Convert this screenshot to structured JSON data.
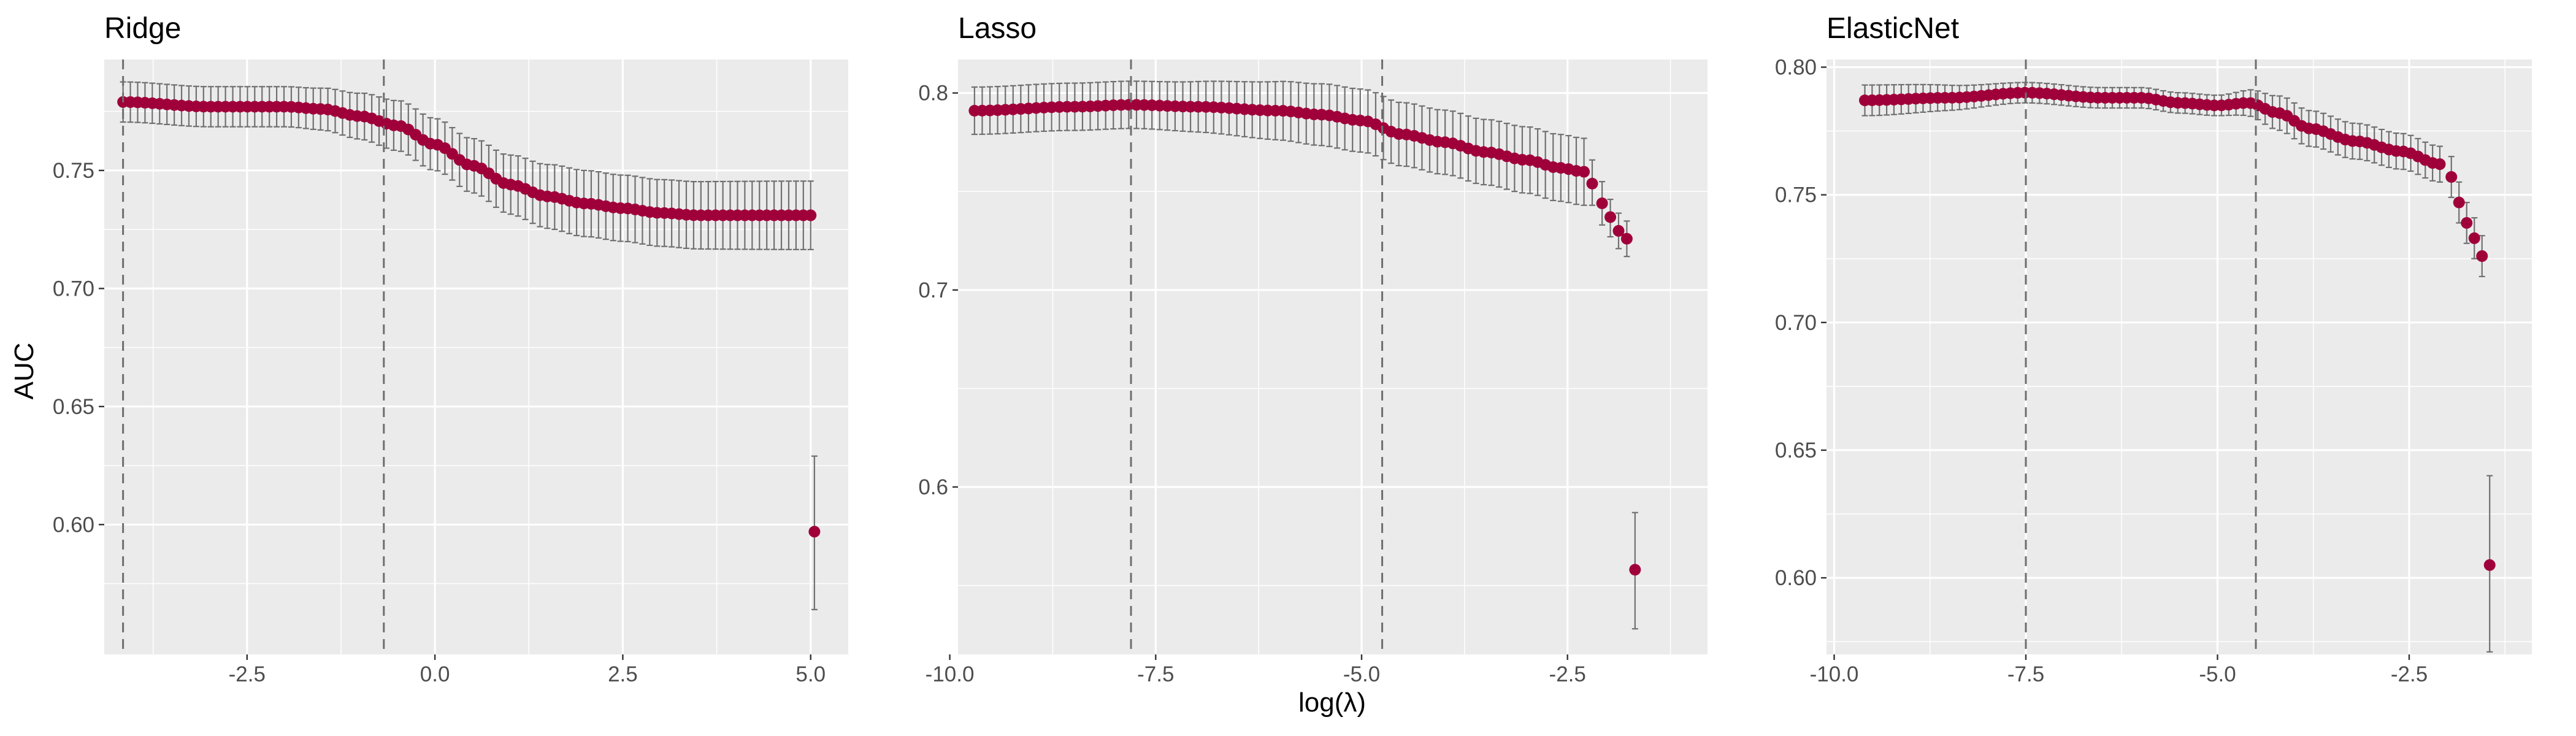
{
  "figure": {
    "ylabel": "AUC",
    "xlabel": "log(λ)",
    "colors": {
      "panel_bg": "#EBEBEB",
      "grid_major": "#FFFFFF",
      "point": "#A0003A",
      "errorbar": "#707070",
      "vline": "#6E6E6E",
      "tick_text": "#4D4D4D",
      "title_text": "#000000"
    }
  },
  "chart_data": [
    {
      "type": "scatter",
      "title": "Ridge",
      "xlim": [
        -4.4,
        5.5
      ],
      "ylim": [
        0.545,
        0.797
      ],
      "xticks": [
        -2.5,
        0.0,
        2.5,
        5.0
      ],
      "xtick_labels": [
        "-2.5",
        "0.0",
        "2.5",
        "5.0"
      ],
      "yticks": [
        0.6,
        0.65,
        0.7,
        0.75
      ],
      "ytick_labels": [
        "0.60",
        "0.65",
        "0.70",
        "0.75"
      ],
      "vlines": [
        -4.15,
        -0.68
      ],
      "grid": true,
      "curve_knots": [
        [
          -4.15,
          0.779
        ],
        [
          -3.0,
          0.777
        ],
        [
          -2.0,
          0.777
        ],
        [
          -1.5,
          0.776
        ],
        [
          -1.0,
          0.773
        ],
        [
          -0.5,
          0.769
        ],
        [
          0.0,
          0.761
        ],
        [
          0.5,
          0.752
        ],
        [
          1.0,
          0.744
        ],
        [
          1.5,
          0.739
        ],
        [
          2.0,
          0.736
        ],
        [
          2.5,
          0.734
        ],
        [
          3.0,
          0.732
        ],
        [
          3.5,
          0.731
        ],
        [
          4.0,
          0.731
        ],
        [
          5.0,
          0.731
        ]
      ],
      "curve_se_knots": [
        [
          -4.15,
          0.0085
        ],
        [
          -2.0,
          0.0085
        ],
        [
          0.0,
          0.011
        ],
        [
          2.0,
          0.014
        ],
        [
          5.0,
          0.0145
        ]
      ],
      "curve_points": 95,
      "outliers": [
        {
          "x": 5.05,
          "y": 0.597,
          "lo": 0.564,
          "hi": 0.629
        }
      ]
    },
    {
      "type": "scatter",
      "title": "Lasso",
      "xlim": [
        -9.9,
        -0.8
      ],
      "ylim": [
        0.515,
        0.817
      ],
      "xticks": [
        -10.0,
        -7.5,
        -5.0,
        -2.5
      ],
      "xtick_labels": [
        "-10.0",
        "-7.5",
        "-5.0",
        "-2.5"
      ],
      "yticks": [
        0.6,
        0.7,
        0.8
      ],
      "ytick_labels": [
        "0.6",
        "0.7",
        "0.8"
      ],
      "vlines": [
        -7.8,
        -4.75
      ],
      "grid": true,
      "curve_knots": [
        [
          -9.7,
          0.791
        ],
        [
          -8.5,
          0.793
        ],
        [
          -7.8,
          0.794
        ],
        [
          -7.0,
          0.793
        ],
        [
          -6.0,
          0.791
        ],
        [
          -5.5,
          0.789
        ],
        [
          -5.0,
          0.786
        ],
        [
          -4.5,
          0.779
        ],
        [
          -4.0,
          0.775
        ],
        [
          -3.5,
          0.77
        ],
        [
          -3.0,
          0.766
        ],
        [
          -2.6,
          0.762
        ],
        [
          -2.3,
          0.76
        ]
      ],
      "curve_se_knots": [
        [
          -9.7,
          0.012
        ],
        [
          -7.8,
          0.012
        ],
        [
          -5.0,
          0.016
        ],
        [
          -2.3,
          0.017
        ]
      ],
      "curve_points": 80,
      "extra_points": [
        {
          "x": -2.2,
          "y": 0.754,
          "lo": 0.743,
          "hi": 0.766
        },
        {
          "x": -2.08,
          "y": 0.744,
          "lo": 0.733,
          "hi": 0.755
        },
        {
          "x": -1.98,
          "y": 0.737,
          "lo": 0.727,
          "hi": 0.746
        },
        {
          "x": -1.88,
          "y": 0.73,
          "lo": 0.721,
          "hi": 0.739
        },
        {
          "x": -1.78,
          "y": 0.726,
          "lo": 0.717,
          "hi": 0.735
        }
      ],
      "outliers": [
        {
          "x": -1.68,
          "y": 0.558,
          "lo": 0.528,
          "hi": 0.587
        }
      ]
    },
    {
      "type": "scatter",
      "title": "ElasticNet",
      "xlim": [
        -10.1,
        -0.9
      ],
      "ylim": [
        0.57,
        0.803
      ],
      "xticks": [
        -10.0,
        -7.5,
        -5.0,
        -2.5
      ],
      "xtick_labels": [
        "-10.0",
        "-7.5",
        "-5.0",
        "-2.5"
      ],
      "yticks": [
        0.6,
        0.65,
        0.7,
        0.75,
        0.8
      ],
      "ytick_labels": [
        "0.60",
        "0.65",
        "0.70",
        "0.75",
        "0.80"
      ],
      "vlines": [
        -7.5,
        -4.5
      ],
      "grid": true,
      "curve_knots": [
        [
          -9.6,
          0.787
        ],
        [
          -8.5,
          0.788
        ],
        [
          -7.5,
          0.79
        ],
        [
          -6.5,
          0.788
        ],
        [
          -6.0,
          0.788
        ],
        [
          -5.5,
          0.786
        ],
        [
          -5.0,
          0.785
        ],
        [
          -4.6,
          0.786
        ],
        [
          -4.2,
          0.782
        ],
        [
          -3.8,
          0.776
        ],
        [
          -3.2,
          0.771
        ],
        [
          -2.6,
          0.767
        ],
        [
          -2.1,
          0.762
        ]
      ],
      "curve_se_knots": [
        [
          -9.6,
          0.006
        ],
        [
          -7.5,
          0.004
        ],
        [
          -5.0,
          0.004
        ],
        [
          -4.0,
          0.007
        ],
        [
          -2.1,
          0.007
        ]
      ],
      "curve_points": 80,
      "extra_points": [
        {
          "x": -1.95,
          "y": 0.757,
          "lo": 0.749,
          "hi": 0.765
        },
        {
          "x": -1.85,
          "y": 0.747,
          "lo": 0.739,
          "hi": 0.755
        },
        {
          "x": -1.75,
          "y": 0.739,
          "lo": 0.731,
          "hi": 0.747
        },
        {
          "x": -1.65,
          "y": 0.733,
          "lo": 0.725,
          "hi": 0.741
        },
        {
          "x": -1.55,
          "y": 0.726,
          "lo": 0.718,
          "hi": 0.734
        }
      ],
      "outliers": [
        {
          "x": -1.45,
          "y": 0.605,
          "lo": 0.571,
          "hi": 0.64
        }
      ]
    }
  ]
}
